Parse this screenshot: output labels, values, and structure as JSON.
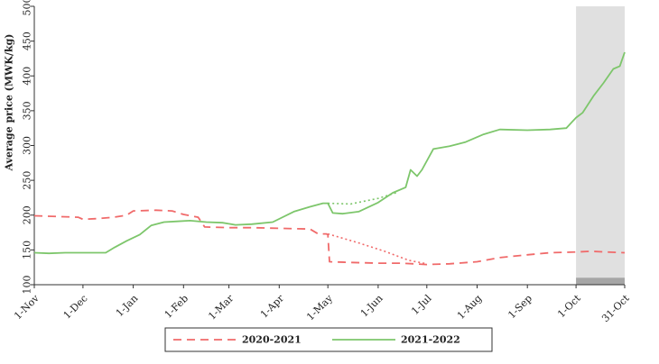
{
  "chart_data": {
    "type": "line",
    "title": "",
    "xlabel": "",
    "ylabel": "Average price (MWK/kg)",
    "ylim": [
      100,
      500
    ],
    "yticks": [
      100,
      150,
      200,
      250,
      300,
      350,
      400,
      450,
      500
    ],
    "x_start": "2020-11-01",
    "x_end": "2021-10-31",
    "xticks": [
      {
        "date": "2020-11-01",
        "label": "1-Nov"
      },
      {
        "date": "2020-12-01",
        "label": "1-Dec"
      },
      {
        "date": "2021-01-01",
        "label": "1-Jan"
      },
      {
        "date": "2021-02-01",
        "label": "1-Feb"
      },
      {
        "date": "2021-03-01",
        "label": "1-Mar"
      },
      {
        "date": "2021-04-01",
        "label": "1-Apr"
      },
      {
        "date": "2021-05-01",
        "label": "1-May"
      },
      {
        "date": "2021-06-01",
        "label": "1-Jun"
      },
      {
        "date": "2021-07-01",
        "label": "1-Jul"
      },
      {
        "date": "2021-08-01",
        "label": "1-Aug"
      },
      {
        "date": "2021-09-01",
        "label": "1-Sep"
      },
      {
        "date": "2021-10-01",
        "label": "1-Oct"
      },
      {
        "date": "2021-10-31",
        "label": "31-Oct"
      }
    ],
    "shaded_region": {
      "from": "2021-10-01",
      "to": "2021-10-31",
      "color": "#e0e0e0",
      "base_band": [
        100,
        110
      ],
      "base_color": "#a6a6a6"
    },
    "grid": false,
    "legend": {
      "placement": "bottom",
      "entries": [
        "2020-2021",
        "2021-2022"
      ]
    },
    "series": [
      {
        "name": "2020-2021",
        "color": "#f06a6a",
        "style": "dashed",
        "points": [
          [
            "2020-11-01",
            199
          ],
          [
            "2020-11-15",
            198
          ],
          [
            "2020-11-28",
            197
          ],
          [
            "2020-12-01",
            194
          ],
          [
            "2020-12-10",
            195
          ],
          [
            "2020-12-20",
            197
          ],
          [
            "2020-12-28",
            200
          ],
          [
            "2021-01-01",
            206
          ],
          [
            "2021-01-15",
            207
          ],
          [
            "2021-01-25",
            206
          ],
          [
            "2021-02-01",
            201
          ],
          [
            "2021-02-10",
            197
          ],
          [
            "2021-02-14",
            183
          ],
          [
            "2021-03-01",
            182
          ],
          [
            "2021-03-15",
            182
          ],
          [
            "2021-04-01",
            181
          ],
          [
            "2021-04-20",
            180
          ],
          [
            "2021-04-25",
            173
          ],
          [
            "2021-04-30",
            173
          ],
          [
            "2021-05-01",
            172
          ],
          [
            "2021-05-02",
            133
          ],
          [
            "2021-05-15",
            132
          ],
          [
            "2021-06-01",
            131
          ],
          [
            "2021-06-15",
            131
          ],
          [
            "2021-07-01",
            129
          ],
          [
            "2021-07-15",
            130
          ],
          [
            "2021-08-01",
            133
          ],
          [
            "2021-08-15",
            139
          ],
          [
            "2021-09-01",
            143
          ],
          [
            "2021-09-15",
            146
          ],
          [
            "2021-10-01",
            147
          ],
          [
            "2021-10-10",
            148
          ],
          [
            "2021-10-20",
            147
          ],
          [
            "2021-10-31",
            146
          ]
        ]
      },
      {
        "name": "2021-2022",
        "color": "#7dc66b",
        "style": "solid",
        "points": [
          [
            "2020-11-01",
            146
          ],
          [
            "2020-11-10",
            145
          ],
          [
            "2020-11-20",
            146
          ],
          [
            "2020-12-01",
            146
          ],
          [
            "2020-12-15",
            146
          ],
          [
            "2020-12-20",
            153
          ],
          [
            "2020-12-28",
            163
          ],
          [
            "2021-01-05",
            172
          ],
          [
            "2021-01-12",
            185
          ],
          [
            "2021-01-20",
            190
          ],
          [
            "2021-01-28",
            191
          ],
          [
            "2021-02-05",
            192
          ],
          [
            "2021-02-15",
            190
          ],
          [
            "2021-02-25",
            189
          ],
          [
            "2021-03-05",
            186
          ],
          [
            "2021-03-15",
            187
          ],
          [
            "2021-03-28",
            190
          ],
          [
            "2021-04-10",
            205
          ],
          [
            "2021-04-20",
            212
          ],
          [
            "2021-04-28",
            217
          ],
          [
            "2021-05-01",
            217
          ],
          [
            "2021-05-04",
            203
          ],
          [
            "2021-05-10",
            202
          ],
          [
            "2021-05-20",
            205
          ],
          [
            "2021-06-01",
            218
          ],
          [
            "2021-06-10",
            232
          ],
          [
            "2021-06-18",
            240
          ],
          [
            "2021-06-21",
            265
          ],
          [
            "2021-06-25",
            256
          ],
          [
            "2021-06-28",
            265
          ],
          [
            "2021-07-05",
            295
          ],
          [
            "2021-07-15",
            299
          ],
          [
            "2021-07-25",
            305
          ],
          [
            "2021-08-05",
            316
          ],
          [
            "2021-08-15",
            323
          ],
          [
            "2021-09-01",
            322
          ],
          [
            "2021-09-15",
            323
          ],
          [
            "2021-09-25",
            325
          ],
          [
            "2021-10-01",
            340
          ],
          [
            "2021-10-05",
            347
          ],
          [
            "2021-10-12",
            372
          ],
          [
            "2021-10-18",
            390
          ],
          [
            "2021-10-24",
            410
          ],
          [
            "2021-10-28",
            414
          ],
          [
            "2021-10-31",
            434
          ]
        ]
      }
    ],
    "annotations": [
      {
        "kind": "dotted-projection",
        "color": "#f06a6a",
        "points": [
          [
            "2021-05-01",
            173
          ],
          [
            "2021-05-20",
            160
          ],
          [
            "2021-06-05",
            148
          ],
          [
            "2021-06-20",
            135
          ],
          [
            "2021-07-01",
            130
          ]
        ]
      },
      {
        "kind": "dotted-projection",
        "color": "#7dc66b",
        "points": [
          [
            "2021-05-01",
            217
          ],
          [
            "2021-05-15",
            216
          ],
          [
            "2021-06-01",
            224
          ],
          [
            "2021-06-12",
            232
          ]
        ]
      }
    ]
  }
}
